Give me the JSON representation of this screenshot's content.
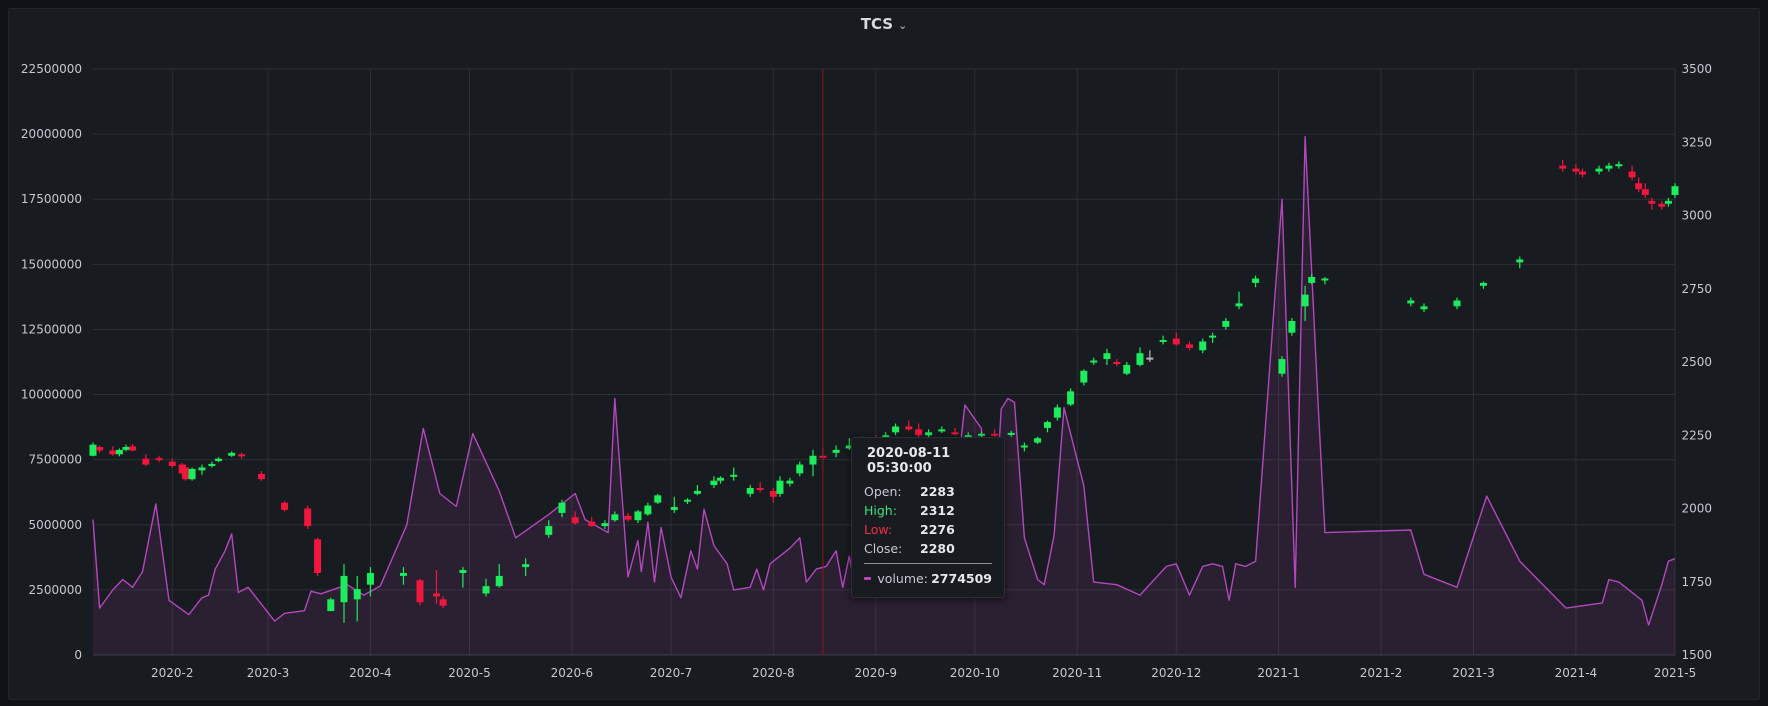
{
  "panel": {
    "title": "TCS"
  },
  "chart_data": {
    "type": "candlestick",
    "title": "TCS",
    "y_left": {
      "min": 0,
      "max": 22500000,
      "ticks": [
        "0",
        "2500000",
        "5000000",
        "7500000",
        "10000000",
        "12500000",
        "15000000",
        "17500000",
        "20000000",
        "22500000"
      ]
    },
    "y_right": {
      "min": 1500,
      "max": 3500,
      "ticks": [
        "1500",
        "1750",
        "2000",
        "2250",
        "2500",
        "2750",
        "3000",
        "3250",
        "3500"
      ]
    },
    "x_range": [
      "2020-01-08",
      "2021-05-01"
    ],
    "x_ticks": [
      {
        "label": "2020-2",
        "date": "2020-02-01"
      },
      {
        "label": "2020-3",
        "date": "2020-03-01"
      },
      {
        "label": "2020-4",
        "date": "2020-04-01"
      },
      {
        "label": "2020-5",
        "date": "2020-05-01"
      },
      {
        "label": "2020-6",
        "date": "2020-06-01"
      },
      {
        "label": "2020-7",
        "date": "2020-07-01"
      },
      {
        "label": "2020-8",
        "date": "2020-08-01"
      },
      {
        "label": "2020-9",
        "date": "2020-09-01"
      },
      {
        "label": "2020-10",
        "date": "2020-10-01"
      },
      {
        "label": "2020-11",
        "date": "2020-11-01"
      },
      {
        "label": "2020-12",
        "date": "2020-12-01"
      },
      {
        "label": "2021-1",
        "date": "2021-01-01"
      },
      {
        "label": "2021-2",
        "date": "2021-02-01"
      },
      {
        "label": "2021-3",
        "date": "2021-03-01"
      },
      {
        "label": "2021-4",
        "date": "2021-04-01"
      },
      {
        "label": "2021-5",
        "date": "2021-05-01"
      }
    ],
    "colors": {
      "up": "#1ced5c",
      "down": "#f0163e",
      "neutral": "#b5b5b5",
      "volume": "#b347bf",
      "crosshair": "#8b1a1a",
      "grid": "#2c2f36"
    },
    "crosshair_date": "2020-08-16",
    "grid": true,
    "volume": [
      [
        "2020-01-08",
        5200000
      ],
      [
        "2020-01-10",
        1800000
      ],
      [
        "2020-01-14",
        2500000
      ],
      [
        "2020-01-17",
        2900000
      ],
      [
        "2020-01-20",
        2600000
      ],
      [
        "2020-01-23",
        3200000
      ],
      [
        "2020-01-27",
        5800000
      ],
      [
        "2020-01-31",
        2100000
      ],
      [
        "2020-02-06",
        1550000
      ],
      [
        "2020-02-10",
        2200000
      ],
      [
        "2020-02-12",
        2300000
      ],
      [
        "2020-02-14",
        3300000
      ],
      [
        "2020-02-17",
        4000000
      ],
      [
        "2020-02-19",
        4650000
      ],
      [
        "2020-02-21",
        2400000
      ],
      [
        "2020-02-24",
        2600000
      ],
      [
        "2020-03-03",
        1300000
      ],
      [
        "2020-03-06",
        1600000
      ],
      [
        "2020-03-12",
        1700000
      ],
      [
        "2020-03-14",
        2450000
      ],
      [
        "2020-03-17",
        2350000
      ],
      [
        "2020-03-25",
        2700000
      ],
      [
        "2020-03-30",
        2300000
      ],
      [
        "2020-04-04",
        2650000
      ],
      [
        "2020-04-12",
        5000000
      ],
      [
        "2020-04-17",
        8700000
      ],
      [
        "2020-04-22",
        6200000
      ],
      [
        "2020-04-27",
        5700000
      ],
      [
        "2020-05-02",
        8500000
      ],
      [
        "2020-05-10",
        6300000
      ],
      [
        "2020-05-15",
        4500000
      ],
      [
        "2020-05-25",
        5400000
      ],
      [
        "2020-06-02",
        6200000
      ],
      [
        "2020-06-05",
        5200000
      ],
      [
        "2020-06-12",
        4700000
      ],
      [
        "2020-06-14",
        9850000
      ],
      [
        "2020-06-18",
        3000000
      ],
      [
        "2020-06-21",
        4400000
      ],
      [
        "2020-06-22",
        3200000
      ],
      [
        "2020-06-24",
        5100000
      ],
      [
        "2020-06-26",
        2800000
      ],
      [
        "2020-06-28",
        4900000
      ],
      [
        "2020-07-01",
        3000000
      ],
      [
        "2020-07-04",
        2200000
      ],
      [
        "2020-07-07",
        4000000
      ],
      [
        "2020-07-09",
        3300000
      ],
      [
        "2020-07-11",
        5600000
      ],
      [
        "2020-07-14",
        4200000
      ],
      [
        "2020-07-18",
        3500000
      ],
      [
        "2020-07-20",
        2500000
      ],
      [
        "2020-07-25",
        2600000
      ],
      [
        "2020-07-27",
        3300000
      ],
      [
        "2020-07-29",
        2500000
      ],
      [
        "2020-07-31",
        3500000
      ],
      [
        "2020-08-06",
        4100000
      ],
      [
        "2020-08-09",
        4500000
      ],
      [
        "2020-08-11",
        2800000
      ],
      [
        "2020-08-14",
        3300000
      ],
      [
        "2020-08-17",
        3400000
      ],
      [
        "2020-08-20",
        4000000
      ],
      [
        "2020-08-22",
        2600000
      ],
      [
        "2020-08-24",
        3800000
      ],
      [
        "2020-08-26",
        2400000
      ],
      [
        "2020-08-28",
        2800000
      ],
      [
        "2020-09-01",
        2200000
      ],
      [
        "2020-09-04",
        3200000
      ],
      [
        "2020-09-09",
        4000000
      ],
      [
        "2020-09-11",
        3100000
      ],
      [
        "2020-09-13",
        5800000
      ],
      [
        "2020-09-16",
        2800000
      ],
      [
        "2020-09-20",
        3100000
      ],
      [
        "2020-09-24",
        5100000
      ],
      [
        "2020-09-28",
        9600000
      ],
      [
        "2020-10-03",
        8700000
      ],
      [
        "2020-10-06",
        2900000
      ],
      [
        "2020-10-09",
        9450000
      ],
      [
        "2020-10-11",
        9850000
      ],
      [
        "2020-10-13",
        9700000
      ],
      [
        "2020-10-16",
        4500000
      ],
      [
        "2020-10-20",
        2900000
      ],
      [
        "2020-10-22",
        2700000
      ],
      [
        "2020-10-25",
        4600000
      ],
      [
        "2020-10-28",
        9500000
      ],
      [
        "2020-11-03",
        6500000
      ],
      [
        "2020-11-06",
        2800000
      ],
      [
        "2020-11-13",
        2700000
      ],
      [
        "2020-11-20",
        2300000
      ],
      [
        "2020-11-28",
        3400000
      ],
      [
        "2020-12-01",
        3500000
      ],
      [
        "2020-12-05",
        2300000
      ],
      [
        "2020-12-09",
        3400000
      ],
      [
        "2020-12-12",
        3500000
      ],
      [
        "2020-12-15",
        3400000
      ],
      [
        "2020-12-17",
        2100000
      ],
      [
        "2020-12-19",
        3500000
      ],
      [
        "2020-12-22",
        3400000
      ],
      [
        "2020-12-25",
        3600000
      ],
      [
        "2021-01-02",
        17500000
      ],
      [
        "2021-01-06",
        2600000
      ],
      [
        "2021-01-09",
        19900000
      ],
      [
        "2021-01-13",
        9500000
      ],
      [
        "2021-01-15",
        4700000
      ],
      [
        "2021-02-10",
        4800000
      ],
      [
        "2021-02-14",
        3100000
      ],
      [
        "2021-02-24",
        2600000
      ],
      [
        "2021-03-05",
        6100000
      ],
      [
        "2021-03-15",
        3600000
      ],
      [
        "2021-03-29",
        1800000
      ],
      [
        "2021-04-09",
        2000000
      ],
      [
        "2021-04-11",
        2900000
      ],
      [
        "2021-04-14",
        2800000
      ],
      [
        "2021-04-21",
        2100000
      ],
      [
        "2021-04-23",
        1150000
      ],
      [
        "2021-04-27",
        2700000
      ],
      [
        "2021-04-29",
        3600000
      ],
      [
        "2021-05-01",
        3700000
      ]
    ],
    "candles": [
      [
        "2020-01-08",
        2180,
        2225,
        2178,
        2218
      ],
      [
        "2020-01-10",
        2210,
        2215,
        2190,
        2198
      ],
      [
        "2020-01-14",
        2198,
        2212,
        2180,
        2185
      ],
      [
        "2020-01-16",
        2185,
        2205,
        2178,
        2200
      ],
      [
        "2020-01-18",
        2200,
        2218,
        2195,
        2210
      ],
      [
        "2020-01-20",
        2212,
        2220,
        2195,
        2198
      ],
      [
        "2020-01-24",
        2170,
        2185,
        2145,
        2150
      ],
      [
        "2020-01-28",
        2172,
        2180,
        2158,
        2165
      ],
      [
        "2020-02-01",
        2160,
        2170,
        2140,
        2145
      ],
      [
        "2020-02-04",
        2150,
        2155,
        2115,
        2120
      ],
      [
        "2020-02-05",
        2140,
        2150,
        2095,
        2100
      ],
      [
        "2020-02-07",
        2100,
        2140,
        2095,
        2135
      ],
      [
        "2020-02-10",
        2130,
        2150,
        2115,
        2140
      ],
      [
        "2020-02-13",
        2145,
        2160,
        2140,
        2152
      ],
      [
        "2020-02-15",
        2162,
        2175,
        2158,
        2170
      ],
      [
        "2020-02-19",
        2180,
        2195,
        2176,
        2190
      ],
      [
        "2020-02-22",
        2185,
        2190,
        2170,
        2180
      ],
      [
        "2020-02-28",
        2118,
        2128,
        2095,
        2100
      ],
      [
        "2020-03-06",
        2020,
        2025,
        1990,
        1995
      ],
      [
        "2020-03-13",
        2000,
        2010,
        1930,
        1940
      ],
      [
        "2020-03-16",
        1895,
        1900,
        1770,
        1780
      ],
      [
        "2020-03-20",
        1650,
        1695,
        1650,
        1690
      ],
      [
        "2020-03-24",
        1680,
        1810,
        1610,
        1770
      ],
      [
        "2020-03-28",
        1690,
        1770,
        1615,
        1725
      ],
      [
        "2020-04-01",
        1740,
        1800,
        1700,
        1780
      ],
      [
        "2020-04-11",
        1770,
        1800,
        1740,
        1780
      ],
      [
        "2020-04-16",
        1755,
        1760,
        1670,
        1680
      ],
      [
        "2020-04-21",
        1710,
        1790,
        1675,
        1700
      ],
      [
        "2020-04-23",
        1690,
        1700,
        1660,
        1668
      ],
      [
        "2020-04-29",
        1780,
        1800,
        1730,
        1790
      ],
      [
        "2020-05-06",
        1710,
        1760,
        1700,
        1735
      ],
      [
        "2020-05-10",
        1735,
        1810,
        1730,
        1770
      ],
      [
        "2020-05-18",
        1800,
        1830,
        1770,
        1810
      ],
      [
        "2020-05-25",
        1910,
        1960,
        1900,
        1940
      ],
      [
        "2020-05-29",
        1985,
        2030,
        1970,
        2020
      ],
      [
        "2020-06-02",
        1970,
        1990,
        1945,
        1950
      ],
      [
        "2020-06-07",
        1955,
        1970,
        1938,
        1940
      ],
      [
        "2020-06-11",
        1940,
        1960,
        1930,
        1950
      ],
      [
        "2020-06-14",
        1960,
        1990,
        1955,
        1980
      ],
      [
        "2020-06-18",
        1975,
        1985,
        1955,
        1962
      ],
      [
        "2020-06-21",
        1960,
        1995,
        1950,
        1990
      ],
      [
        "2020-06-24",
        1980,
        2020,
        1975,
        2010
      ],
      [
        "2020-06-27",
        2020,
        2050,
        2015,
        2045
      ],
      [
        "2020-07-02",
        1995,
        2040,
        1985,
        2005
      ],
      [
        "2020-07-06",
        2025,
        2035,
        2015,
        2030
      ],
      [
        "2020-07-09",
        2050,
        2080,
        2045,
        2060
      ],
      [
        "2020-07-14",
        2080,
        2110,
        2070,
        2095
      ],
      [
        "2020-07-16",
        2095,
        2110,
        2085,
        2105
      ],
      [
        "2020-07-20",
        2110,
        2140,
        2095,
        2115
      ],
      [
        "2020-07-25",
        2050,
        2080,
        2040,
        2070
      ],
      [
        "2020-07-28",
        2070,
        2090,
        2055,
        2065
      ],
      [
        "2020-08-01",
        2060,
        2070,
        2020,
        2040
      ],
      [
        "2020-08-03",
        2050,
        2110,
        2040,
        2095
      ],
      [
        "2020-08-06",
        2085,
        2105,
        2075,
        2095
      ],
      [
        "2020-08-09",
        2120,
        2160,
        2110,
        2150
      ],
      [
        "2020-08-13",
        2150,
        2200,
        2110,
        2180
      ],
      [
        "2020-08-16",
        2180,
        2210,
        2165,
        2175
      ],
      [
        "2020-08-20",
        2190,
        2215,
        2175,
        2200
      ],
      [
        "2020-08-24",
        2205,
        2240,
        2200,
        2215
      ],
      [
        "2020-08-28",
        2215,
        2245,
        2205,
        2225
      ],
      [
        "2020-09-01",
        2215,
        2250,
        2200,
        2210
      ],
      [
        "2020-09-04",
        2230,
        2260,
        2220,
        2250
      ],
      [
        "2020-09-07",
        2260,
        2290,
        2250,
        2280
      ],
      [
        "2020-09-11",
        2280,
        2300,
        2265,
        2270
      ],
      [
        "2020-09-14",
        2270,
        2290,
        2240,
        2250
      ],
      [
        "2020-09-17",
        2250,
        2270,
        2240,
        2260
      ],
      [
        "2020-09-21",
        2265,
        2280,
        2258,
        2270
      ],
      [
        "2020-09-25",
        2260,
        2275,
        2250,
        2255
      ],
      [
        "2020-09-29",
        2245,
        2260,
        2235,
        2250
      ],
      [
        "2020-10-03",
        2248,
        2262,
        2240,
        2255
      ],
      [
        "2020-10-07",
        2255,
        2270,
        2245,
        2250
      ],
      [
        "2020-10-12",
        2252,
        2265,
        2245,
        2258
      ],
      [
        "2020-10-16",
        2210,
        2225,
        2195,
        2215
      ],
      [
        "2020-10-20",
        2225,
        2245,
        2220,
        2240
      ],
      [
        "2020-10-23",
        2275,
        2300,
        2260,
        2295
      ],
      [
        "2020-10-26",
        2310,
        2355,
        2300,
        2345
      ],
      [
        "2020-10-30",
        2355,
        2410,
        2350,
        2400
      ],
      [
        "2020-11-03",
        2430,
        2475,
        2420,
        2470
      ],
      [
        "2020-11-06",
        2500,
        2515,
        2490,
        2505
      ],
      [
        "2020-11-10",
        2510,
        2545,
        2490,
        2530
      ],
      [
        "2020-11-13",
        2500,
        2510,
        2485,
        2495
      ],
      [
        "2020-11-16",
        2460,
        2500,
        2455,
        2490
      ],
      [
        "2020-11-20",
        2490,
        2550,
        2485,
        2530
      ],
      [
        "2020-11-23",
        2515,
        2540,
        2500,
        2515
      ],
      [
        "2020-11-27",
        2570,
        2590,
        2560,
        2575
      ],
      [
        "2020-12-01",
        2580,
        2600,
        2555,
        2560
      ],
      [
        "2020-12-05",
        2560,
        2570,
        2540,
        2548
      ],
      [
        "2020-12-09",
        2540,
        2580,
        2530,
        2570
      ],
      [
        "2020-12-12",
        2585,
        2600,
        2565,
        2590
      ],
      [
        "2020-12-16",
        2620,
        2650,
        2610,
        2640
      ],
      [
        "2020-12-20",
        2690,
        2740,
        2680,
        2700
      ],
      [
        "2020-12-25",
        2770,
        2795,
        2755,
        2785
      ],
      [
        "2021-01-02",
        2460,
        2520,
        2450,
        2510
      ],
      [
        "2021-01-05",
        2600,
        2650,
        2590,
        2640
      ],
      [
        "2021-01-09",
        2690,
        2760,
        2640,
        2730
      ],
      [
        "2021-01-11",
        2770,
        2800,
        2765,
        2790
      ],
      [
        "2021-01-15",
        2780,
        2790,
        2765,
        2785
      ],
      [
        "2021-02-10",
        2700,
        2720,
        2690,
        2710
      ],
      [
        "2021-02-14",
        2680,
        2700,
        2670,
        2690
      ],
      [
        "2021-02-24",
        2690,
        2720,
        2680,
        2710
      ],
      [
        "2021-03-04",
        2760,
        2775,
        2750,
        2770
      ],
      [
        "2021-03-15",
        2840,
        2860,
        2820,
        2850
      ],
      [
        "2021-03-28",
        3170,
        3190,
        3150,
        3160
      ],
      [
        "2021-04-01",
        3160,
        3175,
        3140,
        3150
      ],
      [
        "2021-04-03",
        3150,
        3160,
        3130,
        3140
      ],
      [
        "2021-04-08",
        3150,
        3170,
        3140,
        3160
      ],
      [
        "2021-04-11",
        3160,
        3180,
        3150,
        3170
      ],
      [
        "2021-04-14",
        3170,
        3185,
        3160,
        3175
      ],
      [
        "2021-04-18",
        3150,
        3170,
        3120,
        3130
      ],
      [
        "2021-04-20",
        3110,
        3130,
        3080,
        3090
      ],
      [
        "2021-04-22",
        3090,
        3110,
        3060,
        3070
      ],
      [
        "2021-04-24",
        3050,
        3060,
        3020,
        3040
      ],
      [
        "2021-04-27",
        3040,
        3050,
        3020,
        3030
      ],
      [
        "2021-04-29",
        3040,
        3060,
        3030,
        3050
      ],
      [
        "2021-05-01",
        3070,
        3110,
        3060,
        3100
      ]
    ]
  },
  "tooltip": {
    "time": "2020-08-11 05:30:00",
    "open_label": "Open:",
    "open": "2283",
    "high_label": "High:",
    "high": "2312",
    "low_label": "Low:",
    "low": "2276",
    "close_label": "Close:",
    "close": "2280",
    "volume_label": "volume:",
    "volume": "2774509"
  }
}
